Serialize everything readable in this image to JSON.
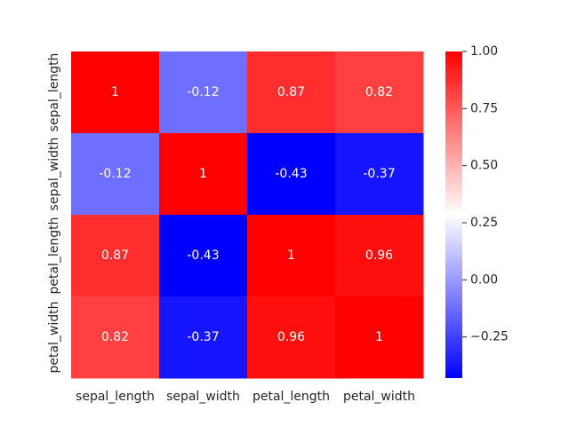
{
  "chart_data": {
    "type": "heatmap",
    "title": "",
    "xlabel": "",
    "ylabel": "",
    "x_categories": [
      "sepal_length",
      "sepal_width",
      "petal_length",
      "petal_width"
    ],
    "y_categories": [
      "sepal_length",
      "sepal_width",
      "petal_length",
      "petal_width"
    ],
    "values": [
      [
        1,
        -0.12,
        0.87,
        0.82
      ],
      [
        -0.12,
        1,
        -0.43,
        -0.37
      ],
      [
        0.87,
        -0.43,
        1,
        0.96
      ],
      [
        0.82,
        -0.37,
        0.96,
        1
      ]
    ],
    "annotations": [
      [
        "1",
        "-0.12",
        "0.87",
        "0.82"
      ],
      [
        "-0.12",
        "1",
        "-0.43",
        "-0.37"
      ],
      [
        "0.87",
        "-0.43",
        "1",
        "0.96"
      ],
      [
        "0.82",
        "-0.37",
        "0.96",
        "1"
      ]
    ],
    "colormap": "bwr",
    "vmin": -0.43,
    "vmax": 1.0,
    "colorbar_ticks": [
      "1.00",
      "0.75",
      "0.50",
      "0.25",
      "0.00",
      "−0.25"
    ],
    "colorbar_tick_values": [
      1.0,
      0.75,
      0.5,
      0.25,
      0.0,
      -0.25
    ],
    "colorbar_position": "right",
    "grid": false
  }
}
